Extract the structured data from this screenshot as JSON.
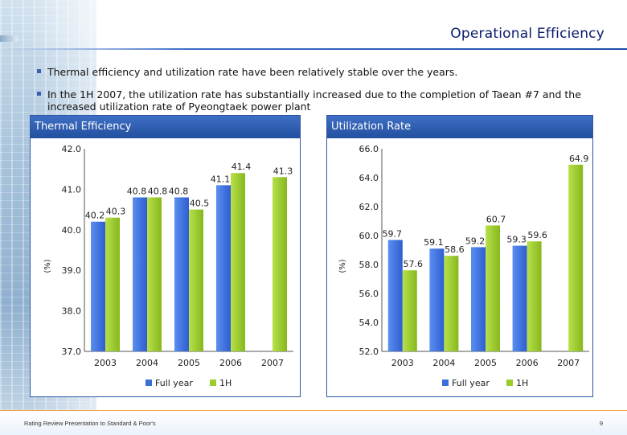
{
  "header": {
    "title": "Operational Efficiency"
  },
  "bullets": [
    "Thermal efficiency and utilization rate have been relatively stable over the years.",
    "In the 1H 2007, the utilization rate has substantially increased due to the completion of Taean #7 and the increased utilization rate of Pyeongtaek power plant"
  ],
  "footer": {
    "left": "Rating Review Presentation to Standard & Poor's",
    "page": "9"
  },
  "colors": {
    "full_year": "#3b6fd8",
    "half_year": "#9ccc2c",
    "panel_head": "#2f5fb3"
  },
  "chart_data": [
    {
      "type": "bar",
      "title": "Thermal Efficiency",
      "ylabel": "(%)",
      "xlabel": "",
      "categories": [
        "2003",
        "2004",
        "2005",
        "2006",
        "2007"
      ],
      "ylim": [
        37.0,
        42.0
      ],
      "yticks": [
        "37.0",
        "38.0",
        "39.0",
        "40.0",
        "41.0",
        "42.0"
      ],
      "legend": [
        "Full year",
        "1H"
      ],
      "series": [
        {
          "name": "Full year",
          "values": [
            40.2,
            40.8,
            40.8,
            41.1,
            null
          ],
          "labels": [
            "40.2",
            "40.8",
            "40.8",
            "41.1",
            ""
          ]
        },
        {
          "name": "1H",
          "values": [
            40.3,
            40.8,
            40.5,
            41.4,
            41.3
          ],
          "labels": [
            "40.3",
            "40.8",
            "40.5",
            "41.4",
            "41.3"
          ]
        }
      ]
    },
    {
      "type": "bar",
      "title": "Utilization Rate",
      "ylabel": "(%)",
      "xlabel": "",
      "categories": [
        "2003",
        "2004",
        "2005",
        "2006",
        "2007"
      ],
      "ylim": [
        52.0,
        66.0
      ],
      "yticks": [
        "52.0",
        "54.0",
        "56.0",
        "58.0",
        "60.0",
        "62.0",
        "64.0",
        "66.0"
      ],
      "legend": [
        "Full year",
        "1H"
      ],
      "series": [
        {
          "name": "Full year",
          "values": [
            59.7,
            59.1,
            59.2,
            59.3,
            null
          ],
          "labels": [
            "59.7",
            "59.1",
            "59.2",
            "59.3",
            ""
          ]
        },
        {
          "name": "1H",
          "values": [
            57.6,
            58.6,
            60.7,
            59.6,
            64.9
          ],
          "labels": [
            "57.6",
            "58.6",
            "60.7",
            "59.6",
            "64.9"
          ]
        }
      ]
    }
  ]
}
